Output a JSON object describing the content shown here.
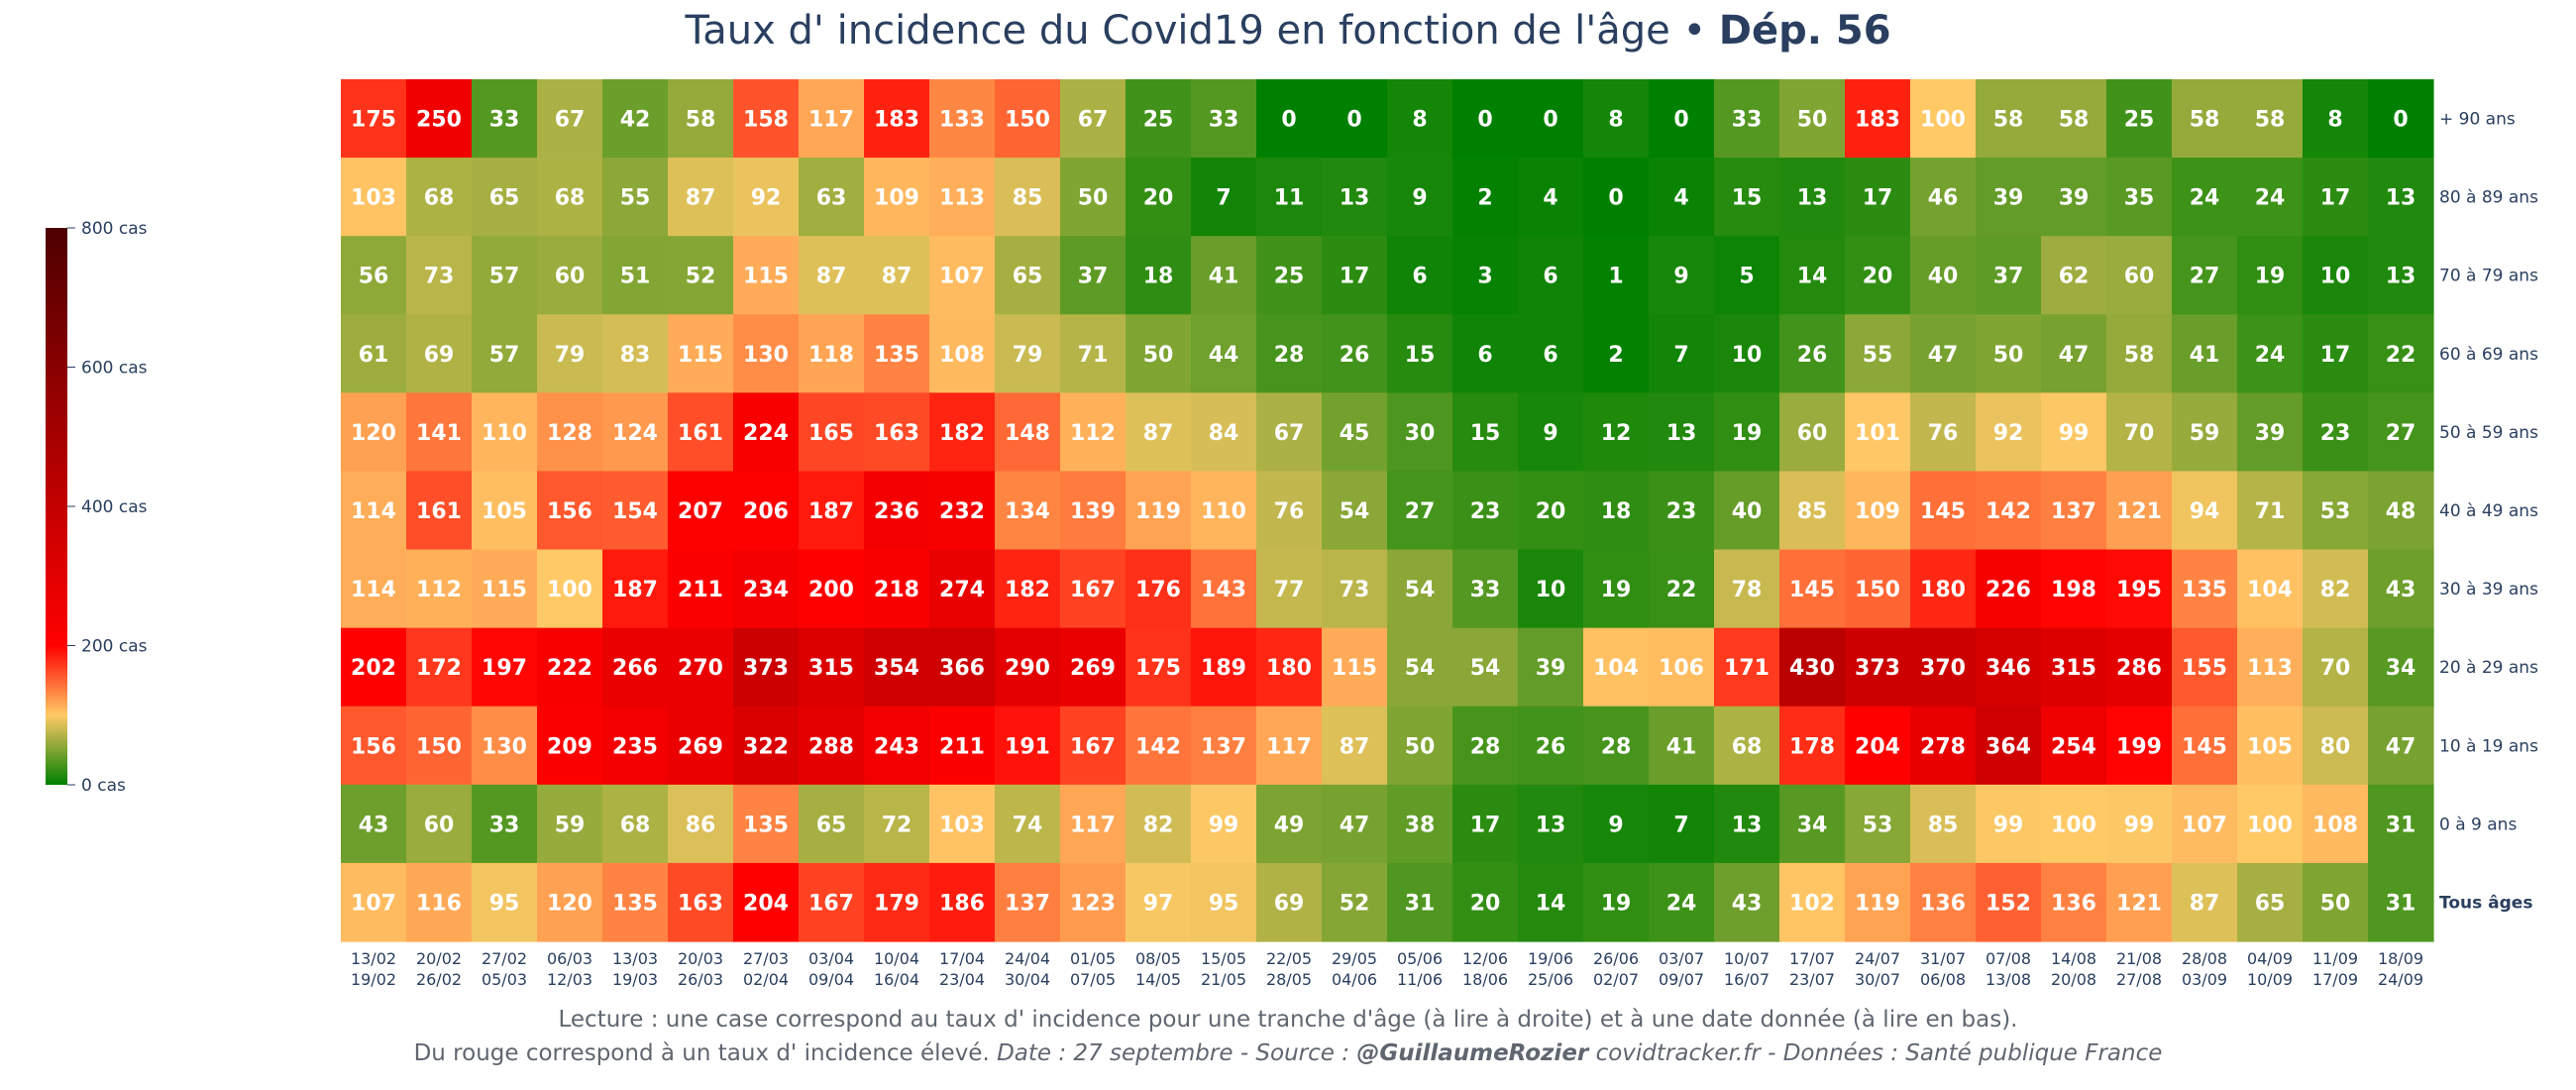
{
  "title": {
    "main": "Taux d' incidence du Covid19 en fonction de l'âge • ",
    "bold": "Dép. 56"
  },
  "footer": {
    "line1": "Lecture : une case correspond au taux d' incidence pour une tranche d'âge (à lire à droite) et à une date donnée (à lire en bas).",
    "line2_plain": "Du rouge correspond à un taux d' incidence élevé.  ",
    "line2_italic1": "Date : 27 septembre - Source : ",
    "line2_bold": "@GuillaumeRozier",
    "line2_italic2": " covidtracker.fr - Données : Santé publique France"
  },
  "colors": {
    "scale": [
      "#008000",
      "#ffc966",
      "#ff0000",
      "#4d0000"
    ],
    "text": "#2a3f5f"
  },
  "chart_data": {
    "type": "heatmap",
    "title": "Taux d' incidence du Covid19 en fonction de l'âge • Dép. 56",
    "x": [
      [
        "13/02",
        "19/02"
      ],
      [
        "20/02",
        "26/02"
      ],
      [
        "27/02",
        "05/03"
      ],
      [
        "06/03",
        "12/03"
      ],
      [
        "13/03",
        "19/03"
      ],
      [
        "20/03",
        "26/03"
      ],
      [
        "27/03",
        "02/04"
      ],
      [
        "03/04",
        "09/04"
      ],
      [
        "10/04",
        "16/04"
      ],
      [
        "17/04",
        "23/04"
      ],
      [
        "24/04",
        "30/04"
      ],
      [
        "01/05",
        "07/05"
      ],
      [
        "08/05",
        "14/05"
      ],
      [
        "15/05",
        "21/05"
      ],
      [
        "22/05",
        "28/05"
      ],
      [
        "29/05",
        "04/06"
      ],
      [
        "05/06",
        "11/06"
      ],
      [
        "12/06",
        "18/06"
      ],
      [
        "19/06",
        "25/06"
      ],
      [
        "26/06",
        "02/07"
      ],
      [
        "03/07",
        "09/07"
      ],
      [
        "10/07",
        "16/07"
      ],
      [
        "17/07",
        "23/07"
      ],
      [
        "24/07",
        "30/07"
      ],
      [
        "31/07",
        "06/08"
      ],
      [
        "07/08",
        "13/08"
      ],
      [
        "14/08",
        "20/08"
      ],
      [
        "21/08",
        "27/08"
      ],
      [
        "28/08",
        "03/09"
      ],
      [
        "04/09",
        "10/09"
      ],
      [
        "11/09",
        "17/09"
      ],
      [
        "18/09",
        "24/09"
      ]
    ],
    "y": [
      "+ 90 ans",
      "80 à 89 ans",
      "70 à 79 ans",
      "60 à 69 ans",
      "50 à 59 ans",
      "40 à 49 ans",
      "30 à 39 ans",
      "20 à 29 ans",
      "10 à 19 ans",
      "0 à 9 ans",
      "Tous âges"
    ],
    "y_bold": [
      "Tous âges"
    ],
    "z": [
      [
        175,
        250,
        33,
        67,
        42,
        58,
        158,
        117,
        183,
        133,
        150,
        67,
        25,
        33,
        0,
        0,
        8,
        0,
        0,
        8,
        0,
        33,
        50,
        183,
        100,
        58,
        58,
        25,
        58,
        58,
        8,
        0
      ],
      [
        103,
        68,
        65,
        68,
        55,
        87,
        92,
        63,
        109,
        113,
        85,
        50,
        20,
        7,
        11,
        13,
        9,
        2,
        4,
        0,
        4,
        15,
        13,
        17,
        46,
        39,
        39,
        35,
        24,
        24,
        17,
        13
      ],
      [
        56,
        73,
        57,
        60,
        51,
        52,
        115,
        87,
        87,
        107,
        65,
        37,
        18,
        41,
        25,
        17,
        6,
        3,
        6,
        1,
        9,
        5,
        14,
        20,
        40,
        37,
        62,
        60,
        27,
        19,
        10,
        13
      ],
      [
        61,
        69,
        57,
        79,
        83,
        115,
        130,
        118,
        135,
        108,
        79,
        71,
        50,
        44,
        28,
        26,
        15,
        6,
        6,
        2,
        7,
        10,
        26,
        55,
        47,
        50,
        47,
        58,
        41,
        24,
        17,
        22
      ],
      [
        120,
        141,
        110,
        128,
        124,
        161,
        224,
        165,
        163,
        182,
        148,
        112,
        87,
        84,
        67,
        45,
        30,
        15,
        9,
        12,
        13,
        19,
        60,
        101,
        76,
        92,
        99,
        70,
        59,
        39,
        23,
        27
      ],
      [
        114,
        161,
        105,
        156,
        154,
        207,
        206,
        187,
        236,
        232,
        134,
        139,
        119,
        110,
        76,
        54,
        27,
        23,
        20,
        18,
        23,
        40,
        85,
        109,
        145,
        142,
        137,
        121,
        94,
        71,
        53,
        48
      ],
      [
        114,
        112,
        115,
        100,
        187,
        211,
        234,
        200,
        218,
        274,
        182,
        167,
        176,
        143,
        77,
        73,
        54,
        33,
        10,
        19,
        22,
        78,
        145,
        150,
        180,
        226,
        198,
        195,
        135,
        104,
        82,
        43
      ],
      [
        202,
        172,
        197,
        222,
        266,
        270,
        373,
        315,
        354,
        366,
        290,
        269,
        175,
        189,
        180,
        115,
        54,
        54,
        39,
        104,
        106,
        171,
        430,
        373,
        370,
        346,
        315,
        286,
        155,
        113,
        70,
        34
      ],
      [
        156,
        150,
        130,
        209,
        235,
        269,
        322,
        288,
        243,
        211,
        191,
        167,
        142,
        137,
        117,
        87,
        50,
        28,
        26,
        28,
        41,
        68,
        178,
        204,
        278,
        364,
        254,
        199,
        145,
        105,
        80,
        47
      ],
      [
        43,
        60,
        33,
        59,
        68,
        86,
        135,
        65,
        72,
        103,
        74,
        117,
        82,
        99,
        49,
        47,
        38,
        17,
        13,
        9,
        7,
        13,
        34,
        53,
        85,
        99,
        100,
        99,
        107,
        100,
        108,
        31
      ],
      [
        107,
        116,
        95,
        120,
        135,
        163,
        204,
        167,
        179,
        186,
        137,
        123,
        97,
        95,
        69,
        52,
        31,
        20,
        14,
        19,
        24,
        43,
        102,
        119,
        136,
        152,
        136,
        121,
        87,
        65,
        50,
        31
      ]
    ],
    "colorbar": {
      "range": [
        0,
        800
      ],
      "ticks": [
        0,
        200,
        400,
        600,
        800
      ],
      "tick_labels": [
        "0 cas",
        "200 cas",
        "400 cas",
        "600 cas",
        "800 cas"
      ]
    }
  }
}
